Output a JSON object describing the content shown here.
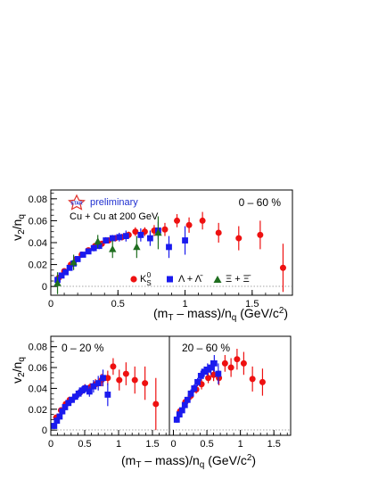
{
  "colors": {
    "kaon": "#ee1111",
    "lambda": "#1a1aee",
    "xi": "#1f6e1f",
    "logo": "#e0302a"
  },
  "chart_data": [
    {
      "type": "scatter",
      "xlabel": "(m_T – mass)/n_q (GeV/c²)",
      "ylabel": "v₂/n_q",
      "xlim": [
        0,
        1.8
      ],
      "ylim": [
        -0.008,
        0.088
      ],
      "x_ticks": [
        "0",
        "0.5",
        "1",
        "1.5"
      ],
      "y_ticks": [
        "0",
        "0.02",
        "0.04",
        "0.06",
        "0.08"
      ],
      "texts": {
        "preliminary": "preliminary",
        "system": "Cu + Cu at 200 GeV",
        "centrality": "0 – 60 %",
        "logo": "STAR"
      },
      "legend": {
        "placement": "bottom-center",
        "labels": [
          "K⁰_S",
          "Λ + Λ̄",
          "Ξ + Ξ̄"
        ]
      },
      "series": [
        {
          "name": "K⁰_S",
          "marker": "circle",
          "points": [
            [
              0.06,
              0.008,
              0.002
            ],
            [
              0.1,
              0.014,
              0.002
            ],
            [
              0.15,
              0.02,
              0.002
            ],
            [
              0.19,
              0.025,
              0.002
            ],
            [
              0.23,
              0.029,
              0.002
            ],
            [
              0.28,
              0.033,
              0.002
            ],
            [
              0.33,
              0.037,
              0.002
            ],
            [
              0.38,
              0.039,
              0.002
            ],
            [
              0.43,
              0.042,
              0.002
            ],
            [
              0.48,
              0.044,
              0.003
            ],
            [
              0.53,
              0.045,
              0.003
            ],
            [
              0.58,
              0.047,
              0.003
            ],
            [
              0.63,
              0.05,
              0.004
            ],
            [
              0.7,
              0.05,
              0.004
            ],
            [
              0.77,
              0.051,
              0.005
            ],
            [
              0.85,
              0.052,
              0.006
            ],
            [
              0.94,
              0.06,
              0.006
            ],
            [
              1.03,
              0.056,
              0.007
            ],
            [
              1.13,
              0.06,
              0.008
            ],
            [
              1.25,
              0.049,
              0.009
            ],
            [
              1.4,
              0.044,
              0.011
            ],
            [
              1.56,
              0.047,
              0.013
            ],
            [
              1.73,
              0.017,
              0.022
            ]
          ]
        },
        {
          "name": "Λ + Λ̄",
          "marker": "square",
          "points": [
            [
              0.05,
              0.006,
              0.002
            ],
            [
              0.08,
              0.01,
              0.002
            ],
            [
              0.11,
              0.013,
              0.002
            ],
            [
              0.14,
              0.017,
              0.002
            ],
            [
              0.17,
              0.021,
              0.002
            ],
            [
              0.2,
              0.025,
              0.002
            ],
            [
              0.24,
              0.029,
              0.002
            ],
            [
              0.28,
              0.032,
              0.002
            ],
            [
              0.32,
              0.035,
              0.003
            ],
            [
              0.36,
              0.037,
              0.003
            ],
            [
              0.41,
              0.042,
              0.003
            ],
            [
              0.46,
              0.044,
              0.003
            ],
            [
              0.51,
              0.045,
              0.004
            ],
            [
              0.56,
              0.046,
              0.005
            ],
            [
              0.67,
              0.047,
              0.006
            ],
            [
              0.74,
              0.044,
              0.007
            ],
            [
              0.8,
              0.051,
              0.008
            ],
            [
              0.88,
              0.036,
              0.01
            ],
            [
              1.0,
              0.042,
              0.013
            ]
          ]
        },
        {
          "name": "Ξ + Ξ̄",
          "marker": "triangle",
          "points": [
            [
              0.05,
              0.003,
              0.01
            ],
            [
              0.17,
              0.022,
              0.007
            ],
            [
              0.35,
              0.041,
              0.006
            ],
            [
              0.46,
              0.034,
              0.008
            ],
            [
              0.64,
              0.036,
              0.01
            ],
            [
              0.8,
              0.049,
              0.015
            ]
          ]
        }
      ]
    },
    {
      "type": "scatter",
      "xlabel": "(m_T – mass)/n_q (GeV/c²)",
      "ylabel": "v₂/n_q",
      "xlim": [
        0,
        1.75
      ],
      "ylim": [
        -0.005,
        0.09
      ],
      "x_ticks": [
        "0",
        "0.5",
        "1",
        "1.5"
      ],
      "y_ticks": [
        "0",
        "0.02",
        "0.04",
        "0.06",
        "0.08"
      ],
      "centrality": "0 – 20 %",
      "series": [
        {
          "name": "K⁰_S",
          "marker": "circle",
          "points": [
            [
              0.08,
              0.012,
              0.003
            ],
            [
              0.15,
              0.019,
              0.003
            ],
            [
              0.22,
              0.025,
              0.003
            ],
            [
              0.28,
              0.029,
              0.003
            ],
            [
              0.36,
              0.032,
              0.003
            ],
            [
              0.43,
              0.036,
              0.003
            ],
            [
              0.5,
              0.04,
              0.004
            ],
            [
              0.58,
              0.041,
              0.004
            ],
            [
              0.66,
              0.044,
              0.005
            ],
            [
              0.75,
              0.048,
              0.006
            ],
            [
              0.84,
              0.05,
              0.007
            ],
            [
              0.92,
              0.061,
              0.008
            ],
            [
              1.01,
              0.048,
              0.01
            ],
            [
              1.11,
              0.054,
              0.011
            ],
            [
              1.24,
              0.048,
              0.013
            ],
            [
              1.39,
              0.045,
              0.016
            ],
            [
              1.55,
              0.025,
              0.025
            ]
          ]
        },
        {
          "name": "Λ + Λ̄",
          "marker": "square",
          "points": [
            [
              0.05,
              0.004,
              0.003
            ],
            [
              0.09,
              0.009,
              0.003
            ],
            [
              0.13,
              0.013,
              0.003
            ],
            [
              0.17,
              0.018,
              0.003
            ],
            [
              0.21,
              0.022,
              0.003
            ],
            [
              0.26,
              0.026,
              0.003
            ],
            [
              0.31,
              0.029,
              0.003
            ],
            [
              0.36,
              0.032,
              0.003
            ],
            [
              0.41,
              0.035,
              0.004
            ],
            [
              0.46,
              0.038,
              0.004
            ],
            [
              0.51,
              0.04,
              0.004
            ],
            [
              0.57,
              0.037,
              0.005
            ],
            [
              0.63,
              0.042,
              0.006
            ],
            [
              0.7,
              0.045,
              0.007
            ],
            [
              0.77,
              0.05,
              0.008
            ],
            [
              0.84,
              0.034,
              0.011
            ]
          ]
        }
      ]
    },
    {
      "type": "scatter",
      "xlabel": "(m_T – mass)/n_q (GeV/c²)",
      "ylabel": "v₂/n_q",
      "xlim": [
        -0.06,
        1.75
      ],
      "ylim": [
        -0.005,
        0.09
      ],
      "x_ticks": [
        "0",
        "0.5",
        "1",
        "1.5"
      ],
      "centrality": "20 – 60 %",
      "series": [
        {
          "name": "K⁰_S",
          "marker": "circle",
          "points": [
            [
              0.1,
              0.018,
              0.003
            ],
            [
              0.18,
              0.027,
              0.003
            ],
            [
              0.26,
              0.033,
              0.004
            ],
            [
              0.34,
              0.039,
              0.004
            ],
            [
              0.42,
              0.044,
              0.005
            ],
            [
              0.52,
              0.05,
              0.005
            ],
            [
              0.6,
              0.053,
              0.006
            ],
            [
              0.68,
              0.05,
              0.007
            ],
            [
              0.77,
              0.064,
              0.008
            ],
            [
              0.86,
              0.06,
              0.009
            ],
            [
              0.95,
              0.068,
              0.01
            ],
            [
              1.05,
              0.064,
              0.011
            ],
            [
              1.18,
              0.049,
              0.012
            ],
            [
              1.33,
              0.046,
              0.013
            ]
          ]
        },
        {
          "name": "Λ + Λ̄",
          "marker": "square",
          "points": [
            [
              0.05,
              0.01,
              0.003
            ],
            [
              0.09,
              0.015,
              0.003
            ],
            [
              0.13,
              0.019,
              0.003
            ],
            [
              0.17,
              0.024,
              0.003
            ],
            [
              0.21,
              0.029,
              0.003
            ],
            [
              0.26,
              0.035,
              0.004
            ],
            [
              0.31,
              0.04,
              0.004
            ],
            [
              0.36,
              0.046,
              0.004
            ],
            [
              0.41,
              0.052,
              0.005
            ],
            [
              0.46,
              0.056,
              0.005
            ],
            [
              0.51,
              0.058,
              0.006
            ],
            [
              0.56,
              0.06,
              0.007
            ],
            [
              0.61,
              0.064,
              0.008
            ],
            [
              0.67,
              0.054,
              0.01
            ]
          ]
        }
      ]
    }
  ]
}
